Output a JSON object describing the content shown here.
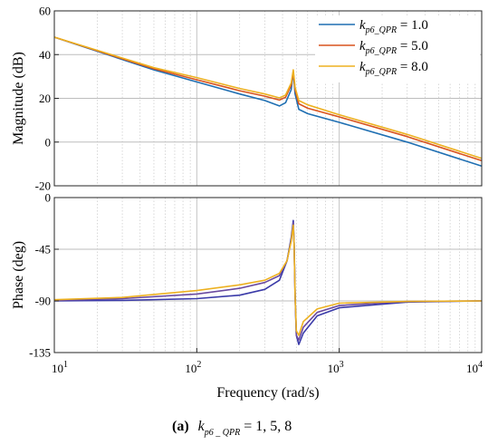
{
  "chart_data": [
    {
      "type": "line",
      "panel": "magnitude",
      "ylabel": "Magnitude (dB)",
      "xscale": "log",
      "xlim": [
        10,
        10000
      ],
      "ylim": [
        -20,
        60
      ],
      "yticks": [
        -20,
        0,
        20,
        40,
        60
      ],
      "grid": true,
      "legend": {
        "placement": "top-right",
        "entries": [
          {
            "symbol": "k",
            "subscript": "p6_QPR",
            "text": " = 1.0"
          },
          {
            "symbol": "k",
            "subscript": "p6_QPR",
            "text": " = 5.0"
          },
          {
            "symbol": "k",
            "subscript": "p6_QPR",
            "text": " = 8.0"
          }
        ]
      },
      "series": [
        {
          "color": "#1f6fb2",
          "x": [
            10,
            50,
            100,
            200,
            300,
            380,
            420,
            460,
            476,
            490,
            520,
            600,
            1000,
            3000,
            10000
          ],
          "y": [
            48,
            33,
            27.5,
            22,
            19,
            16.5,
            18,
            24,
            32,
            22,
            15,
            13,
            9,
            0,
            -11
          ]
        },
        {
          "color": "#d9531e",
          "x": [
            10,
            50,
            100,
            200,
            300,
            380,
            420,
            460,
            476,
            490,
            520,
            600,
            1000,
            3000,
            10000
          ],
          "y": [
            48,
            33.5,
            28.5,
            23.5,
            21,
            19.2,
            20.5,
            26,
            32,
            24,
            17.5,
            15.5,
            11.5,
            2.5,
            -8.5
          ]
        },
        {
          "color": "#edb120",
          "x": [
            10,
            50,
            100,
            200,
            300,
            380,
            420,
            460,
            476,
            490,
            520,
            600,
            1000,
            3000,
            10000
          ],
          "y": [
            48,
            34,
            29.5,
            24.5,
            22,
            20.2,
            21.5,
            27,
            33,
            25,
            19,
            17,
            12.5,
            3.5,
            -7.5
          ]
        }
      ]
    },
    {
      "type": "line",
      "panel": "phase",
      "xlabel": "Frequency  (rad/s)",
      "ylabel": "Phase (deg)",
      "xscale": "log",
      "xlim": [
        10,
        10000
      ],
      "ylim": [
        -135,
        0
      ],
      "yticks": [
        -135,
        -90,
        -45,
        0
      ],
      "xticks": [
        {
          "base": "10",
          "exp": "1",
          "v": 10
        },
        {
          "base": "10",
          "exp": "2",
          "v": 100
        },
        {
          "base": "10",
          "exp": "3",
          "v": 1000
        },
        {
          "base": "10",
          "exp": "4",
          "v": 10000
        }
      ],
      "grid": true,
      "series": [
        {
          "color": "#3a3aa8",
          "x": [
            10,
            30,
            100,
            200,
            300,
            380,
            430,
            460,
            476,
            482,
            490,
            500,
            520,
            560,
            700,
            1000,
            3000,
            10000
          ],
          "y": [
            -90,
            -89.5,
            -88,
            -85,
            -80,
            -72,
            -55,
            -35,
            -20,
            -40,
            -85,
            -120,
            -128,
            -118,
            -103,
            -96,
            -91,
            -90
          ]
        },
        {
          "color": "#6a4aa0",
          "x": [
            10,
            30,
            100,
            200,
            300,
            380,
            430,
            460,
            476,
            482,
            490,
            500,
            520,
            560,
            700,
            1000,
            3000,
            10000
          ],
          "y": [
            -89.5,
            -88,
            -84,
            -79,
            -74,
            -68,
            -55,
            -37,
            -22,
            -40,
            -85,
            -120,
            -124,
            -113,
            -100,
            -94,
            -90.5,
            -90
          ]
        },
        {
          "color": "#edb120",
          "x": [
            10,
            30,
            100,
            200,
            300,
            380,
            430,
            460,
            476,
            482,
            490,
            500,
            520,
            560,
            700,
            1000,
            3000,
            10000
          ],
          "y": [
            -89,
            -87,
            -81,
            -76,
            -72,
            -66,
            -55,
            -38,
            -24,
            -40,
            -85,
            -116,
            -120,
            -108,
            -97,
            -92,
            -90.5,
            -90
          ]
        }
      ]
    }
  ],
  "caption": {
    "label": "(a)",
    "symbol": "k",
    "subscript": "p6 _ QPR",
    "values": " = 1, 5, 8"
  }
}
